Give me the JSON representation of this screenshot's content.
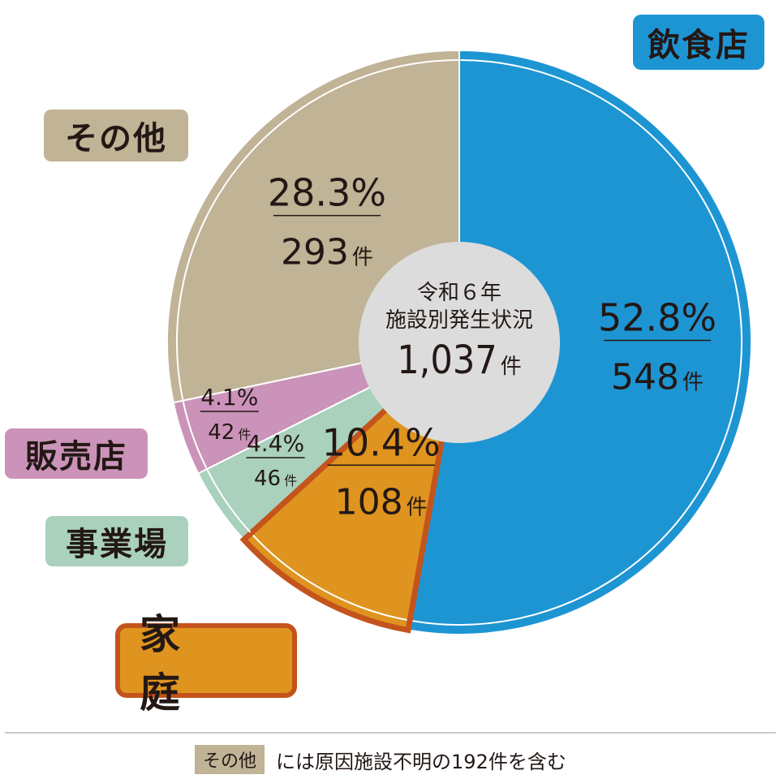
{
  "chart_data": {
    "type": "pie",
    "title": "令和６年 施設別発生状況",
    "total": {
      "value": "1,037",
      "unit": "件"
    },
    "slices": [
      {
        "category": "飲食店",
        "percent": 52.8,
        "percent_label": "52.8%",
        "count": 548,
        "count_label": "548",
        "unit": "件",
        "color": "#1e95d3"
      },
      {
        "category": "家 庭",
        "percent": 10.4,
        "percent_label": "10.4%",
        "count": 108,
        "count_label": "108",
        "unit": "件",
        "color": "#df9420",
        "highlight_color": "#c4541c"
      },
      {
        "category": "事業場",
        "percent": 4.4,
        "percent_label": "4.4%",
        "count": 46,
        "count_label": "46",
        "unit": "件",
        "color": "#a9d1bd"
      },
      {
        "category": "販売店",
        "percent": 4.1,
        "percent_label": "4.1%",
        "count": 42,
        "count_label": "42",
        "unit": "件",
        "color": "#cb93b9"
      },
      {
        "category": "その他",
        "percent": 28.3,
        "percent_label": "28.3%",
        "count": 293,
        "count_label": "293",
        "unit": "件",
        "color": "#c0b396"
      }
    ]
  },
  "center": {
    "line1": "令和６年",
    "line2": "施設別発生状況",
    "total": "1,037",
    "unit": "件"
  },
  "labels": {
    "inshoku": "飲食店",
    "sonota": "その他",
    "hanbai": "販売店",
    "jigyo": "事業場",
    "katei": "家 庭"
  },
  "footnote": {
    "badge": "その他",
    "text": "には原因施設不明の192件を含む"
  }
}
